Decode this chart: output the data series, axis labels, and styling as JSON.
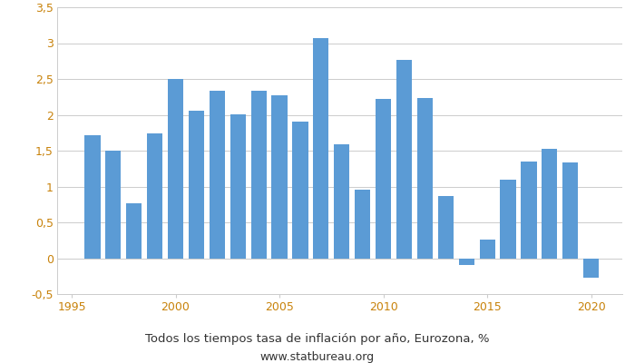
{
  "years": [
    1996,
    1997,
    1998,
    1999,
    2000,
    2001,
    2002,
    2003,
    2004,
    2005,
    2006,
    2007,
    2008,
    2009,
    2010,
    2011,
    2012,
    2013,
    2014,
    2015,
    2016,
    2017,
    2018,
    2019,
    2020
  ],
  "values": [
    1.72,
    1.5,
    0.76,
    1.74,
    2.5,
    2.06,
    2.33,
    2.01,
    2.33,
    2.27,
    1.91,
    3.07,
    1.59,
    0.95,
    2.22,
    2.76,
    2.23,
    0.87,
    -0.1,
    0.26,
    1.09,
    1.35,
    1.53,
    1.33,
    -0.27
  ],
  "bar_color": "#5B9BD5",
  "xlim": [
    1994.3,
    2021.5
  ],
  "ylim": [
    -0.5,
    3.5
  ],
  "yticks": [
    -0.5,
    0,
    0.5,
    1.0,
    1.5,
    2.0,
    2.5,
    3.0,
    3.5
  ],
  "ytick_labels": [
    "-0,5",
    "0",
    "0,5",
    "1",
    "1,5",
    "2",
    "2,5",
    "3",
    "3,5"
  ],
  "xticks": [
    1995,
    2000,
    2005,
    2010,
    2015,
    2020
  ],
  "title": "Todos los tiempos tasa de inflación por año, Eurozona, %",
  "subtitle": "www.statbureau.org",
  "title_fontsize": 9.5,
  "subtitle_fontsize": 9,
  "tick_label_color": "#C8820A",
  "axis_label_color": "#555555",
  "background_color": "#ffffff",
  "grid_color": "#cccccc",
  "bar_width": 0.75
}
